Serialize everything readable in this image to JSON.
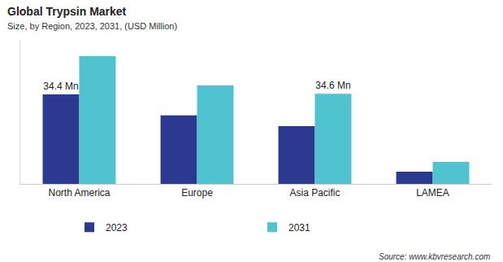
{
  "chart_data": {
    "type": "bar",
    "title": "Global Trypsin Market",
    "subtitle": "Size, by Region, 2023, 2031, (USD Million)",
    "source": "Source: www.kbvresearch.com",
    "categories": [
      "North America",
      "Europe",
      "Asia Pacific",
      "LAMEA"
    ],
    "series": [
      {
        "name": "2023",
        "color": "#2b3990",
        "values": [
          34.4,
          26.3,
          22.2,
          4.7
        ],
        "value_labels": [
          "34.4 Mn",
          null,
          null,
          null
        ]
      },
      {
        "name": "2031",
        "color": "#4fc3cf",
        "values": [
          49.1,
          37.8,
          34.6,
          8.4
        ],
        "value_labels": [
          null,
          null,
          "34.6 Mn",
          null
        ]
      }
    ],
    "ylim": [
      0,
      55
    ],
    "data_labels": true,
    "tick_labels": "x",
    "grid": false,
    "legend": "bottom"
  }
}
